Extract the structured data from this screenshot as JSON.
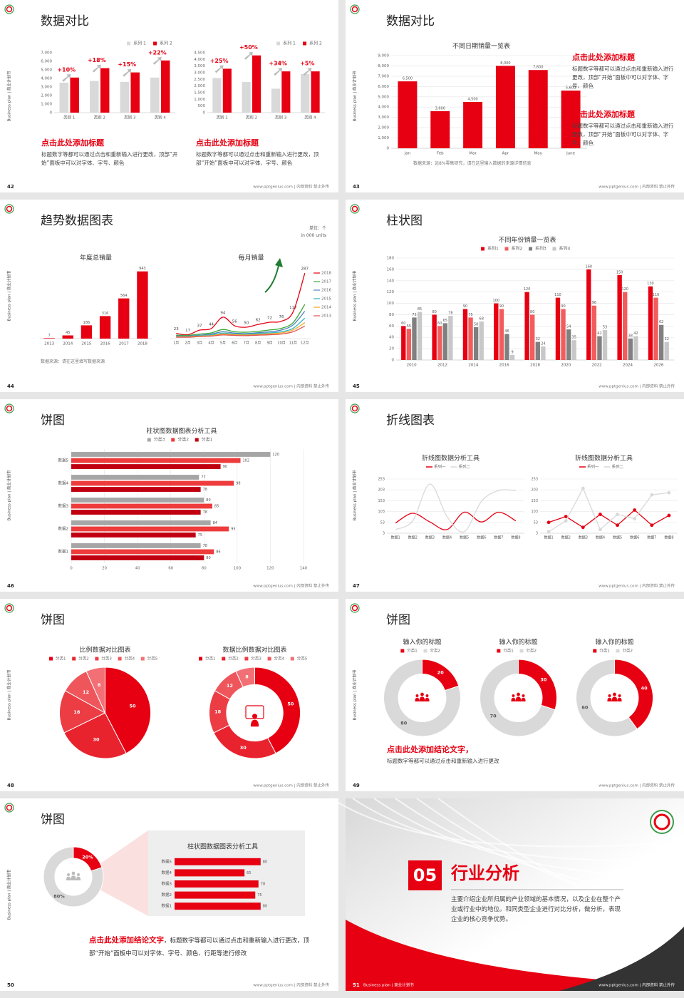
{
  "side_label": "Business plan | 商业计划书",
  "footer": "www.pptgenius.com | 内部资料 禁止外传",
  "slides": [
    {
      "page": 42,
      "title": "数据对比",
      "charts": [
        {
          "type": "bar",
          "legend": "top-right",
          "categories": [
            "类别 1",
            "类别 2",
            "类别 3",
            "类别 4"
          ],
          "series": [
            {
              "name": "系列 1",
              "color": "#d9d9d9",
              "values": [
                3500,
                3700,
                3600,
                4100
              ]
            },
            {
              "name": "系列 2",
              "color": "#e60012",
              "values": [
                4100,
                5200,
                4700,
                6100
              ]
            }
          ],
          "ylim": [
            0,
            7000
          ],
          "yticks": [
            0,
            {
              "value": 1000,
              "label": "1,000"
            },
            {
              "value": 2000,
              "label": "2,000"
            },
            {
              "value": 3000,
              "label": "3,000"
            },
            {
              "value": 4000,
              "label": "4,000"
            },
            {
              "value": 5000,
              "label": "5,000"
            },
            {
              "value": 6000,
              "label": "6,000"
            },
            {
              "value": 7000,
              "label": "7,000"
            }
          ],
          "grid": false,
          "annotations": [
            "+10%",
            "+18%",
            "+15%",
            "+22%"
          ]
        },
        {
          "type": "bar",
          "legend": "top-right",
          "categories": [
            "类别 1",
            "类别 2",
            "类别 3",
            "类别 4"
          ],
          "series": [
            {
              "name": "系列 1",
              "color": "#d9d9d9",
              "values": [
                2600,
                2300,
                1800,
                2900
              ]
            },
            {
              "name": "系列 2",
              "color": "#e60012",
              "values": [
                3300,
                4300,
                3100,
                3100
              ]
            }
          ],
          "ylim": [
            0,
            4500
          ],
          "yticks": [
            0,
            500,
            {
              "value": 1000,
              "label": "1,000"
            },
            {
              "value": 1500,
              "label": "1,500"
            },
            {
              "value": 2000,
              "label": "2,000"
            },
            {
              "value": 2500,
              "label": "2,500"
            },
            {
              "value": 3000,
              "label": "3,000"
            },
            {
              "value": 3500,
              "label": "3,500"
            },
            {
              "value": 4000,
              "label": "4,000"
            },
            {
              "value": 4500,
              "label": "4,500"
            }
          ],
          "grid": false,
          "annotations": [
            "+25%",
            "+50%",
            "+34%",
            "+5%"
          ]
        }
      ],
      "notes": [
        {
          "heading": "点击此处添加标题",
          "body": "标题数字等都可以通过点击和重新输入进行更改，顶部“开始”面板中可以对字体、字号、颜色"
        },
        {
          "heading": "点击此处添加标题",
          "body": "标题数字等都可以通过点击和重新输入进行更改，顶部“开始”面板中可以对字体、字号、颜色"
        }
      ]
    },
    {
      "page": 43,
      "title": "数据对比",
      "charts": [
        {
          "type": "bar",
          "title": "不同日期销量一览表",
          "categories": [
            "Jan",
            "Feb",
            "Mar",
            "Apr",
            "May",
            "June"
          ],
          "values": [
            6500,
            3600,
            4500,
            8000,
            7600,
            5600
          ],
          "value_labels": [
            "6,500",
            "3,600",
            "4,500",
            "8,000",
            "7,600",
            "5,600"
          ],
          "color": "#e60012",
          "show_values": true,
          "ylim": [
            0,
            9000
          ],
          "yticks": [
            0,
            {
              "value": 1000,
              "label": "1,000"
            },
            {
              "value": 2000,
              "label": "2,000"
            },
            {
              "value": 3000,
              "label": "3,000"
            },
            {
              "value": 4000,
              "label": "4,000"
            },
            {
              "value": 5000,
              "label": "5,000"
            },
            {
              "value": 6000,
              "label": "6,000"
            },
            {
              "value": 7000,
              "label": "7,000"
            },
            {
              "value": 8000,
              "label": "8,000"
            },
            {
              "value": 9000,
              "label": "9,000"
            }
          ],
          "grid": true
        }
      ],
      "notes": [
        {
          "heading": "点击此处添加标题",
          "body": "标题数字等都可以通过点击和重新输入进行更改，顶部“开始”面板中可以对字体、字号、颜色"
        },
        {
          "heading": "点击此处添加标题",
          "body": "标题数字等都可以通过点击和重新输入进行更改，顶部“开始”面板中可以对字体、字号、颜色"
        },
        {
          "body": "数据来源：远8%零售研究，请在这里输入数据的来源详情信息"
        }
      ]
    },
    {
      "page": 44,
      "title": "趋势数据图表",
      "charts": [
        {
          "type": "bar",
          "title": "年度总销量",
          "categories": [
            "2013",
            "2014",
            "2015",
            "2016",
            "2017",
            "2018"
          ],
          "values": [
            7,
            45,
            186,
            316,
            564,
            943
          ],
          "color": "#e60012",
          "show_values": true,
          "ylim": [
            0,
            1000
          ]
        },
        {
          "type": "line",
          "title": "每月销量",
          "legend": "right",
          "smooth": true,
          "categories": [
            "1月",
            "2月",
            "3月",
            "4月",
            "5月",
            "6月",
            "7月",
            "8月",
            "9月",
            "10月",
            "11月",
            "12月"
          ],
          "ylim": [
            0,
            300
          ],
          "series": [
            {
              "name": "2018",
              "color": "#e60012",
              "labels": true,
              "values": [
                23,
                17,
                37,
                44,
                94,
                56,
                50,
                62,
                72,
                76,
                117,
                287
              ]
            },
            {
              "name": "2017",
              "color": "#3aa935",
              "values": [
                15,
                14,
                20,
                25,
                40,
                30,
                28,
                32,
                38,
                45,
                70,
                150
              ]
            },
            {
              "name": "2016",
              "color": "#4f81bd",
              "values": [
                12,
                11,
                15,
                20,
                30,
                24,
                22,
                26,
                30,
                38,
                60,
                120
              ]
            },
            {
              "name": "2015",
              "color": "#2fb5c4",
              "values": [
                10,
                9,
                13,
                16,
                24,
                20,
                19,
                22,
                25,
                30,
                45,
                90
              ]
            },
            {
              "name": "2014",
              "color": "#f5a623",
              "values": [
                8,
                8,
                11,
                13,
                20,
                17,
                16,
                18,
                21,
                25,
                38,
                70
              ]
            },
            {
              "name": "2013",
              "color": "#e2554f",
              "values": [
                6,
                6,
                9,
                11,
                16,
                14,
                13,
                15,
                17,
                20,
                30,
                55
              ]
            }
          ]
        }
      ],
      "notes": [
        {
          "heading": "单位：个",
          "body": "in 000 units"
        },
        {
          "body": "数据来源：请在这里填写数据来源"
        }
      ]
    },
    {
      "page": 45,
      "title": "柱状图",
      "charts": [
        {
          "type": "bar",
          "title": "不同年份销量一览表",
          "legend": "top",
          "show_values": true,
          "grid": true,
          "categories": [
            "2010",
            "2012",
            "2014",
            "2016",
            "2018",
            "2020",
            "2022",
            "2024",
            "2026"
          ],
          "series": [
            {
              "name": "系列1",
              "color": "#e60012",
              "values": [
                60,
                80,
                90,
                100,
                120,
                110,
                160,
                150,
                130
              ]
            },
            {
              "name": "系列2",
              "color": "#f25c5c",
              "values": [
                55,
                60,
                75,
                90,
                80,
                90,
                96,
                120,
                110
              ]
            },
            {
              "name": "系列3",
              "color": "#808080",
              "values": [
                75,
                65,
                58,
                46,
                32,
                54,
                42,
                38,
                62
              ]
            },
            {
              "name": "系列4",
              "color": "#c8c8c8",
              "values": [
                85,
                78,
                68,
                9,
                24,
                35,
                53,
                42,
                32
              ]
            }
          ],
          "ylim": [
            0,
            180
          ],
          "yticks": [
            0,
            20,
            40,
            60,
            80,
            100,
            120,
            140,
            160,
            180
          ]
        }
      ]
    },
    {
      "page": 46,
      "title": "饼图",
      "charts": [
        {
          "type": "bar",
          "horizontal": true,
          "title": "柱状图数据图表分析工具",
          "legend": "top",
          "show_values": true,
          "grid": true,
          "categories": [
            "数据1",
            "数据2",
            "数据3",
            "数据4",
            "数据5"
          ],
          "series": [
            {
              "name": "分类3",
              "color": "#a6a6a6",
              "values": [
                78,
                84,
                80,
                77,
                120
              ]
            },
            {
              "name": "分类2",
              "color": "#ee3b3b",
              "values": [
                86,
                95,
                85,
                98,
                102
              ]
            },
            {
              "name": "分类1",
              "color": "#c00010",
              "values": [
                80,
                75,
                78,
                78,
                90
              ]
            }
          ],
          "xlim": [
            0,
            140
          ],
          "xticks": [
            0,
            20,
            40,
            60,
            80,
            100,
            120,
            140
          ]
        }
      ]
    },
    {
      "page": 47,
      "title": "折线图表",
      "charts": [
        {
          "type": "line",
          "title": "折线图数据分析工具",
          "legend": "top",
          "smooth": true,
          "grid": true,
          "categories": [
            "数据1",
            "数据2",
            "数据3",
            "数据4",
            "数据5",
            "数据6",
            "数据7",
            "数据8"
          ],
          "series": [
            {
              "name": "系列一",
              "color": "#e60012",
              "values": [
                50,
                95,
                55,
                20,
                100,
                55,
                100,
                60
              ]
            },
            {
              "name": "系列二",
              "color": "#d9d9d9",
              "values": [
                20,
                60,
                230,
                80,
                10,
                150,
                200,
                200
              ]
            }
          ],
          "ylim": [
            3,
            253
          ],
          "yticks": [
            3,
            53,
            103,
            153,
            203,
            253
          ]
        },
        {
          "type": "line",
          "title": "折线图数据分析工具",
          "legend": "top",
          "markers": true,
          "grid": true,
          "categories": [
            "数据1",
            "数据2",
            "数据3",
            "数据4",
            "数据5",
            "数据6",
            "数据7",
            "数据8"
          ],
          "series": [
            {
              "name": "系列一",
              "color": "#e60012",
              "values": [
                53,
                80,
                30,
                90,
                40,
                110,
                40,
                85
              ]
            },
            {
              "name": "系列二",
              "color": "#d9d9d9",
              "values": [
                10,
                60,
                210,
                20,
                90,
                70,
                180,
                190
              ]
            }
          ],
          "ylim": [
            3,
            253
          ],
          "yticks": [
            3,
            53,
            103,
            153,
            203,
            253
          ]
        }
      ]
    },
    {
      "page": 48,
      "title": "饼图",
      "charts": [
        {
          "type": "pie",
          "title": "比例数据对比图表",
          "legend": "top",
          "categories": [
            "分类1",
            "分类2",
            "分类3",
            "分类4",
            "分类5"
          ],
          "values": [
            50,
            30,
            18,
            12,
            8
          ],
          "colors": [
            "#e60012",
            "#e8232e",
            "#ec3d45",
            "#ef565c",
            "#f27075"
          ]
        },
        {
          "type": "pie",
          "donut": true,
          "title": "数据比例数据对比图表",
          "legend": "top",
          "categories": [
            "分类1",
            "分类2",
            "分类3",
            "分类4",
            "分类5"
          ],
          "values": [
            50,
            30,
            18,
            12,
            8
          ],
          "colors": [
            "#e60012",
            "#e8232e",
            "#ec3d45",
            "#ef565c",
            "#f27075"
          ]
        }
      ]
    },
    {
      "page": 49,
      "title": "饼图",
      "charts": [
        {
          "type": "pie",
          "donut": true,
          "title": "输入你的标题",
          "legend": "top",
          "categories": [
            "分类1",
            "分类2"
          ],
          "values": [
            20,
            80
          ],
          "colors": [
            "#e60012",
            "#d9d9d9"
          ]
        },
        {
          "type": "pie",
          "donut": true,
          "title": "输入你的标题",
          "legend": "top",
          "categories": [
            "分类1",
            "分类2"
          ],
          "values": [
            30,
            70
          ],
          "colors": [
            "#e60012",
            "#d9d9d9"
          ]
        },
        {
          "type": "pie",
          "donut": true,
          "title": "输入你的标题",
          "legend": "top",
          "categories": [
            "分类1",
            "分类2"
          ],
          "values": [
            40,
            60
          ],
          "colors": [
            "#e60012",
            "#d9d9d9"
          ]
        }
      ],
      "notes": [
        {
          "heading": "点击此处添加结论文字，",
          "body": "标题数字等都可以通过点击和重新输入进行更改"
        }
      ]
    },
    {
      "page": 50,
      "title": "饼图",
      "charts": [
        {
          "type": "pie",
          "donut": true,
          "values": [
            20,
            80
          ],
          "value_labels": [
            "20%",
            "80%"
          ],
          "colors": [
            "#e60012",
            "#d9d9d9"
          ]
        },
        {
          "type": "bar",
          "horizontal": true,
          "title": "柱状图数据图表分析工具",
          "show_values": true,
          "categories": [
            "数据1",
            "数据2",
            "数据3",
            "数据4",
            "数据5"
          ],
          "values": [
            80,
            75,
            78,
            65,
            80
          ],
          "color": "#e60012",
          "xlim": [
            0,
            100
          ]
        }
      ],
      "notes": [
        {
          "heading": "点击此处添加结论文字",
          "body": "，标题数字等都可以通过点击和重新输入进行更改，顶部“开始”面板中可以对字体、字号、颜色、行距等进行修改"
        }
      ]
    },
    {
      "page": 51,
      "section": {
        "number": "05",
        "title": "行业分析",
        "body": "主要介绍企业所归属的产业领域的基本情况，以及企业在整个产业或行业中的地位。和同类型企业进行对比分析，做分析，表现企业的核心竞争优势。"
      }
    }
  ]
}
